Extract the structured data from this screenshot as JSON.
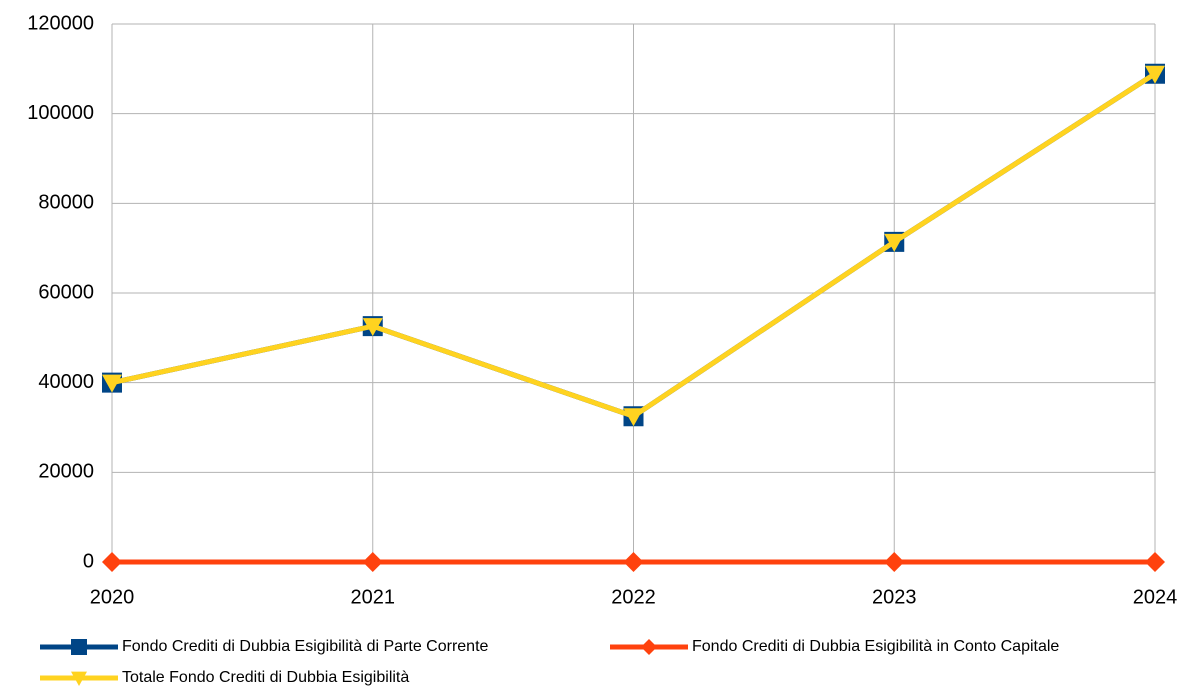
{
  "chart_data": {
    "type": "line",
    "categories": [
      "2020",
      "2021",
      "2022",
      "2023",
      "2024"
    ],
    "series": [
      {
        "name": "Fondo Crediti di Dubbia Esigibilità di Parte Corrente",
        "color": "#004586",
        "marker": "square",
        "values": [
          40000,
          52600,
          32500,
          71400,
          108900
        ]
      },
      {
        "name": "Fondo Crediti di Dubbia Esigibilità in Conto Capitale",
        "color": "#ff420e",
        "marker": "diamond",
        "values": [
          0,
          0,
          0,
          0,
          0
        ]
      },
      {
        "name": "Totale Fondo Crediti di Dubbia Esigibilità",
        "color": "#ffd320",
        "marker": "triangle-down",
        "values": [
          40000,
          52600,
          32500,
          71400,
          108900
        ]
      }
    ],
    "ylim": [
      0,
      120000
    ],
    "yticks": [
      0,
      20000,
      40000,
      60000,
      80000,
      100000,
      120000
    ],
    "grid": true,
    "legend": "bottom"
  }
}
